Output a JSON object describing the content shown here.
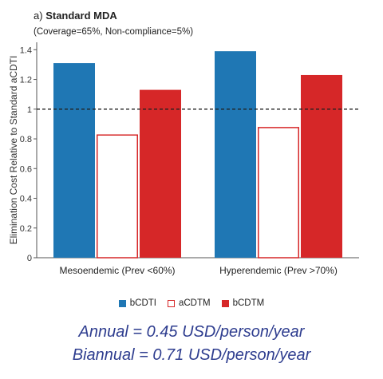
{
  "panel_label": "a)",
  "footnotes": {
    "annual": "Annual = 0.45 USD/person/year",
    "biannual": "Biannual = 0.71 USD/person/year"
  },
  "chart_data": {
    "type": "bar",
    "title": "Standard MDA",
    "subtitle": "(Coverage=65%, Non-compliance=5%)",
    "xlabel": "",
    "ylabel": "Elimination Cost Relative to Standard aCDTI",
    "ylim": [
      0,
      1.45
    ],
    "yticks": [
      "0",
      "0.2",
      "0.4",
      "0.6",
      "0.8",
      "1",
      "1.2",
      "1.4"
    ],
    "grid": false,
    "legend_position": "bottom",
    "reference_line": {
      "y": 1,
      "style": "dashed"
    },
    "categories": [
      "Mesoendemic (Prev  <60%)",
      "Hyperendemic (Prev  >70%)"
    ],
    "series": [
      {
        "name": "bCDTI",
        "color": "#1f77b4",
        "fill": "solid",
        "values": [
          1.31,
          1.39
        ]
      },
      {
        "name": "aCDTM",
        "color": "#d62728",
        "fill": "outline",
        "values": [
          0.83,
          0.88
        ]
      },
      {
        "name": "bCDTM",
        "color": "#d62728",
        "fill": "solid",
        "values": [
          1.13,
          1.23
        ]
      }
    ]
  }
}
